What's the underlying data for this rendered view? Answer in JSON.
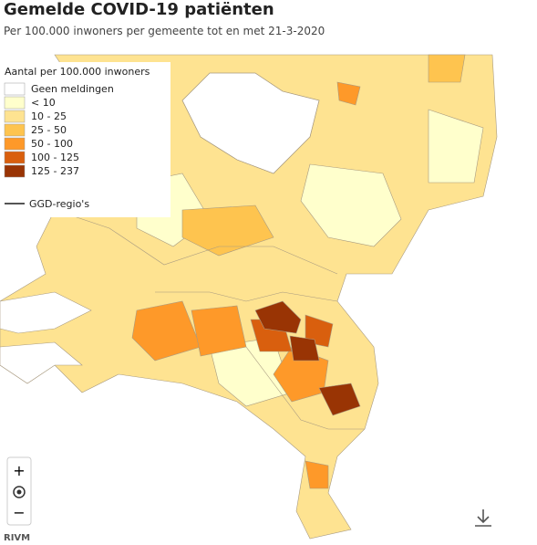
{
  "header": {
    "title": "Gemelde COVID-19 patiënten",
    "subtitle": "Per 100.000 inwoners per gemeente tot en met 21-3-2020"
  },
  "legend": {
    "title": "Aantal per 100.000 inwoners",
    "items": [
      {
        "label": "Geen meldingen",
        "color": "#ffffff"
      },
      {
        "label": "< 10",
        "color": "#ffffcc"
      },
      {
        "label": "10 - 25",
        "color": "#fee391"
      },
      {
        "label": "25 - 50",
        "color": "#fec44f"
      },
      {
        "label": "50 - 100",
        "color": "#fe9929"
      },
      {
        "label": "100 - 125",
        "color": "#d95f0e"
      },
      {
        "label": "125 - 237",
        "color": "#993404"
      }
    ],
    "boundary": "GGD-regio's"
  },
  "controls": {
    "zoom_in": "+",
    "zoom_out": "−"
  },
  "source": "RIVM"
}
